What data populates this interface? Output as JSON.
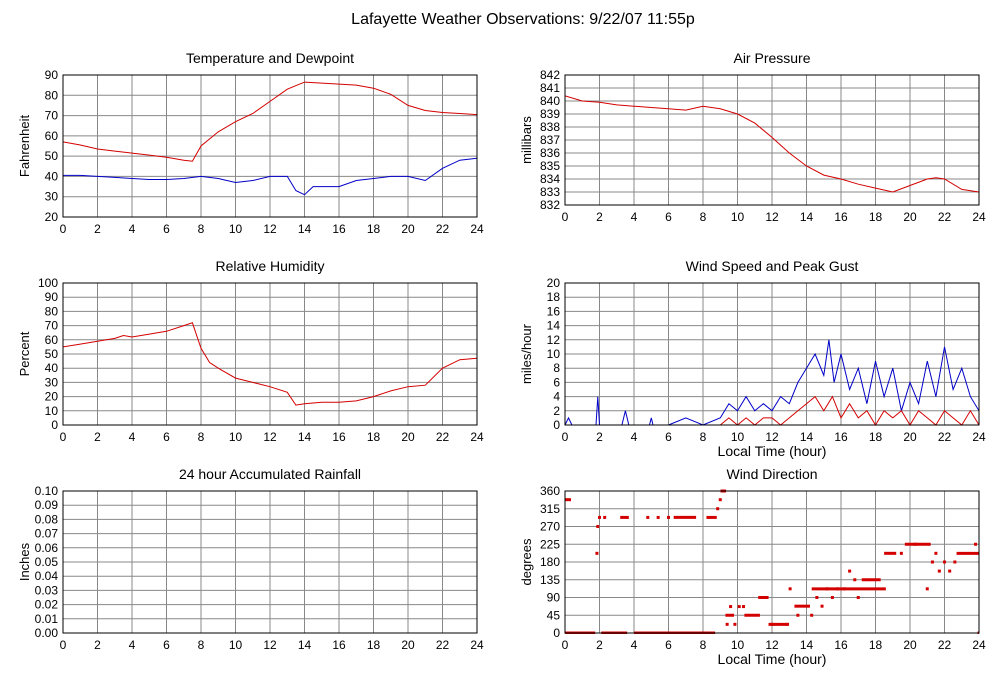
{
  "page": {
    "title": "Lafayette Weather Observations: 9/22/07 11:55p"
  },
  "colors": {
    "red": "#d40000",
    "blue": "#0000c8",
    "grid": "#888888"
  },
  "chart_data": [
    {
      "id": "temperature",
      "type": "line",
      "title": "Temperature and Dewpoint",
      "xlabel": "",
      "ylabel": "Fahrenheit",
      "xlim": [
        0,
        24
      ],
      "ylim": [
        20,
        90
      ],
      "xticks": [
        0,
        2,
        4,
        6,
        8,
        10,
        12,
        14,
        16,
        18,
        20,
        22,
        24
      ],
      "yticks": [
        20,
        30,
        40,
        50,
        60,
        70,
        80,
        90
      ],
      "grid": true,
      "series": [
        {
          "color": "red",
          "x": [
            0,
            1,
            2,
            3,
            4,
            5,
            6,
            7,
            7.5,
            8,
            9,
            10,
            11,
            12,
            13,
            14,
            15,
            16,
            17,
            18,
            19,
            20,
            21,
            22,
            23,
            24
          ],
          "y": [
            57,
            55.5,
            53.5,
            52.5,
            51.5,
            50.5,
            49.5,
            48,
            47.5,
            55,
            62,
            67,
            71,
            77,
            83,
            86.5,
            86,
            85.5,
            85,
            83.5,
            80.5,
            75,
            72.5,
            71.5,
            71,
            70.5
          ]
        },
        {
          "color": "blue",
          "x": [
            0,
            1,
            2,
            3,
            4,
            5,
            6,
            7,
            8,
            9,
            10,
            11,
            12,
            13,
            13.5,
            14,
            14.5,
            15,
            16,
            17,
            18,
            19,
            20,
            21,
            22,
            23,
            24
          ],
          "y": [
            40.5,
            40.5,
            40,
            39.5,
            39,
            38.5,
            38.5,
            39,
            40,
            39,
            37,
            38,
            40,
            40,
            33,
            31,
            35,
            35,
            35,
            38,
            39,
            40,
            40,
            38,
            44,
            48,
            49
          ]
        }
      ]
    },
    {
      "id": "pressure",
      "type": "line",
      "title": "Air Pressure",
      "xlabel": "",
      "ylabel": "millibars",
      "xlim": [
        0,
        24
      ],
      "ylim": [
        832,
        842
      ],
      "xticks": [
        0,
        2,
        4,
        6,
        8,
        10,
        12,
        14,
        16,
        18,
        20,
        22,
        24
      ],
      "yticks": [
        832,
        833,
        834,
        835,
        836,
        837,
        838,
        839,
        840,
        841,
        842
      ],
      "grid": true,
      "series": [
        {
          "color": "red",
          "x": [
            0,
            1,
            2,
            3,
            4,
            5,
            6,
            7,
            8,
            9,
            10,
            11,
            12,
            13,
            14,
            15,
            16,
            17,
            18,
            19,
            20,
            21,
            21.5,
            22,
            23,
            24
          ],
          "y": [
            840.4,
            840,
            839.9,
            839.7,
            839.6,
            839.5,
            839.4,
            839.3,
            839.6,
            839.4,
            839,
            838.3,
            837.2,
            836,
            835,
            834.3,
            834,
            833.6,
            833.3,
            833,
            833.5,
            834,
            834.1,
            834,
            833.2,
            833
          ]
        }
      ]
    },
    {
      "id": "humidity",
      "type": "line",
      "title": "Relative Humidity",
      "xlabel": "",
      "ylabel": "Percent",
      "xlim": [
        0,
        24
      ],
      "ylim": [
        0,
        100
      ],
      "xticks": [
        0,
        2,
        4,
        6,
        8,
        10,
        12,
        14,
        16,
        18,
        20,
        22,
        24
      ],
      "yticks": [
        0,
        10,
        20,
        30,
        40,
        50,
        60,
        70,
        80,
        90,
        100
      ],
      "grid": true,
      "series": [
        {
          "color": "red",
          "x": [
            0,
            1,
            2,
            3,
            3.5,
            4,
            5,
            6,
            7,
            7.5,
            8,
            8.5,
            9,
            10,
            11,
            12,
            13,
            13.5,
            14,
            15,
            16,
            17,
            18,
            19,
            20,
            21,
            22,
            23,
            24
          ],
          "y": [
            55,
            57,
            59,
            61,
            63,
            62,
            64,
            66,
            70,
            72,
            54,
            44,
            40,
            33,
            30,
            27,
            23,
            14,
            15,
            16,
            16,
            17,
            20,
            24,
            27,
            28,
            40,
            46,
            47
          ]
        }
      ]
    },
    {
      "id": "wind-speed",
      "type": "line",
      "title": "Wind Speed and Peak Gust",
      "xlabel": "Local Time (hour)",
      "ylabel": "miles/hour",
      "xlim": [
        0,
        24
      ],
      "ylim": [
        0,
        20
      ],
      "xticks": [
        0,
        2,
        4,
        6,
        8,
        10,
        12,
        14,
        16,
        18,
        20,
        22,
        24
      ],
      "yticks": [
        0,
        2,
        4,
        6,
        8,
        10,
        12,
        14,
        16,
        18,
        20
      ],
      "grid": true,
      "series": [
        {
          "color": "blue",
          "x": [
            0,
            0.2,
            0.4,
            1.8,
            1.9,
            2.0,
            2.1,
            3.3,
            3.5,
            3.7,
            4.9,
            5.0,
            5.1,
            6.0,
            7.0,
            8.0,
            9.0,
            9.5,
            10.0,
            10.5,
            11.0,
            11.5,
            12.0,
            12.5,
            13.0,
            13.5,
            14.0,
            14.5,
            15.0,
            15.3,
            15.6,
            16.0,
            16.5,
            17.0,
            17.5,
            18.0,
            18.5,
            19.0,
            19.5,
            20.0,
            20.5,
            21.0,
            21.5,
            22.0,
            22.5,
            23.0,
            23.5,
            24.0
          ],
          "y": [
            0,
            1,
            0,
            0,
            4,
            0,
            0,
            0,
            2,
            0,
            0,
            1,
            0,
            0,
            1,
            0,
            1,
            3,
            2,
            4,
            2,
            3,
            2,
            4,
            3,
            6,
            8,
            10,
            7,
            12,
            6,
            10,
            5,
            8,
            3,
            9,
            4,
            8,
            2,
            6,
            3,
            9,
            4,
            11,
            5,
            8,
            4,
            2
          ]
        },
        {
          "color": "red",
          "x": [
            0,
            9.0,
            9.5,
            10.0,
            10.5,
            11.0,
            11.5,
            12.0,
            12.5,
            13.0,
            13.5,
            14.0,
            14.5,
            15.0,
            15.5,
            16.0,
            16.5,
            17.0,
            17.5,
            18.0,
            18.5,
            19.0,
            19.5,
            20.0,
            20.5,
            21.0,
            21.5,
            22.0,
            22.5,
            23.0,
            23.5,
            24.0
          ],
          "y": [
            0,
            0,
            1,
            0,
            1,
            0,
            1,
            1,
            0,
            1,
            2,
            3,
            4,
            2,
            4,
            1,
            3,
            1,
            2,
            0,
            2,
            1,
            2,
            0,
            2,
            1,
            0,
            2,
            1,
            0,
            2,
            0
          ]
        }
      ]
    },
    {
      "id": "rainfall",
      "type": "line",
      "title": "24 hour Accumulated Rainfall",
      "xlabel": "",
      "ylabel": "Inches",
      "xlim": [
        0,
        24
      ],
      "ylim": [
        0,
        0.1
      ],
      "xticks": [
        0,
        2,
        4,
        6,
        8,
        10,
        12,
        14,
        16,
        18,
        20,
        22,
        24
      ],
      "yticks": [
        "0.00",
        "0.01",
        "0.02",
        "0.03",
        "0.04",
        "0.05",
        "0.06",
        "0.07",
        "0.08",
        "0.09",
        "0.10"
      ],
      "grid": true,
      "series": [
        {
          "color": "red",
          "x": [
            0,
            24
          ],
          "y": [
            0,
            0
          ]
        }
      ]
    },
    {
      "id": "wind-direction",
      "type": "scatter",
      "title": "Wind Direction",
      "xlabel": "Local Time (hour)",
      "ylabel": "degrees",
      "xlim": [
        0,
        24
      ],
      "ylim": [
        0,
        360
      ],
      "xticks": [
        0,
        2,
        4,
        6,
        8,
        10,
        12,
        14,
        16,
        18,
        20,
        22,
        24
      ],
      "yticks": [
        0,
        45,
        90,
        135,
        180,
        225,
        270,
        315,
        360
      ],
      "grid": true,
      "series": [
        {
          "color": "red",
          "segments": [
            {
              "x1": 0.0,
              "x2": 0.35,
              "y": 338
            },
            {
              "x1": 0.0,
              "x2": 1.75,
              "y": 0
            },
            {
              "x1": 2.1,
              "x2": 3.6,
              "y": 0
            },
            {
              "x1": 4.0,
              "x2": 8.7,
              "y": 0
            },
            {
              "x1": 3.2,
              "x2": 3.7,
              "y": 293
            },
            {
              "x1": 6.3,
              "x2": 7.6,
              "y": 293
            },
            {
              "x1": 8.2,
              "x2": 8.8,
              "y": 293
            },
            {
              "x1": 9.3,
              "x2": 9.8,
              "y": 45
            },
            {
              "x1": 10.4,
              "x2": 11.3,
              "y": 45
            },
            {
              "x1": 11.2,
              "x2": 11.8,
              "y": 90
            },
            {
              "x1": 11.8,
              "x2": 12.9,
              "y": 22
            },
            {
              "x1": 13.3,
              "x2": 14.2,
              "y": 68
            },
            {
              "x1": 14.3,
              "x2": 18.6,
              "y": 112
            },
            {
              "x1": 17.2,
              "x2": 18.3,
              "y": 135
            },
            {
              "x1": 18.5,
              "x2": 19.2,
              "y": 202
            },
            {
              "x1": 19.7,
              "x2": 21.2,
              "y": 225
            },
            {
              "x1": 22.7,
              "x2": 24.0,
              "y": 202
            }
          ],
          "x": [
            1.85,
            1.9,
            2.0,
            2.3,
            4.8,
            5.4,
            6.0,
            8.85,
            9.0,
            9.1,
            9.25,
            9.4,
            9.6,
            9.85,
            10.1,
            10.35,
            12.0,
            12.9,
            13.05,
            13.5,
            14.3,
            14.6,
            14.9,
            15.2,
            15.5,
            15.8,
            16.2,
            16.5,
            16.8,
            17.0,
            19.5,
            20.3,
            21.0,
            21.3,
            21.5,
            21.7,
            22.0,
            22.3,
            22.6,
            23.8,
            24.0
          ],
          "y": [
            202,
            270,
            293,
            293,
            293,
            293,
            293,
            315,
            338,
            360,
            360,
            22,
            67,
            22,
            67,
            67,
            22,
            22,
            112,
            45,
            45,
            90,
            68,
            112,
            90,
            112,
            112,
            157,
            135,
            90,
            202,
            225,
            112,
            180,
            202,
            157,
            180,
            157,
            180,
            225,
            0
          ]
        }
      ]
    }
  ]
}
